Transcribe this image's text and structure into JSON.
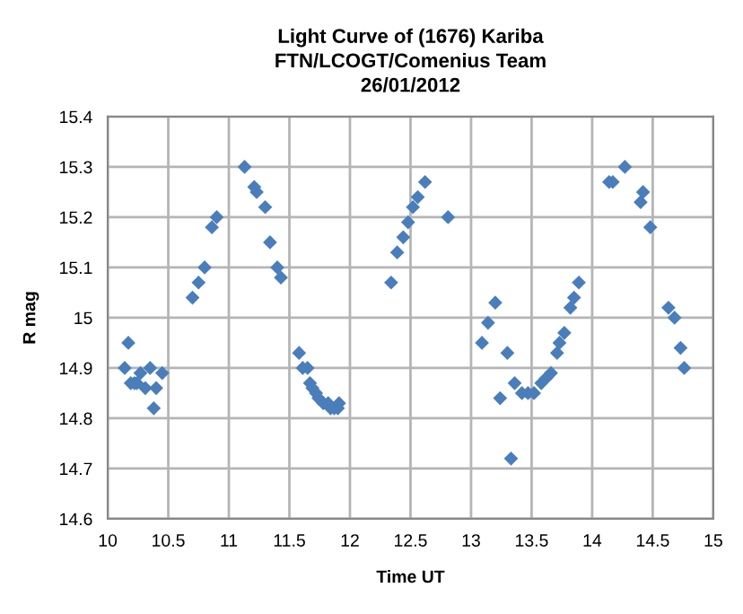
{
  "chart_data": {
    "type": "scatter",
    "title": "Light Curve of (1676) Kariba\nFTN/LCOGT/Comenius Team\n26/01/2012",
    "xlabel": "Time UT",
    "ylabel": "R mag",
    "x": [
      10.14,
      10.17,
      10.19,
      10.22,
      10.24,
      10.27,
      10.31,
      10.35,
      10.38,
      10.4,
      10.45,
      10.7,
      10.75,
      10.8,
      10.86,
      10.9,
      11.13,
      11.21,
      11.23,
      11.3,
      11.34,
      11.4,
      11.43,
      11.58,
      11.61,
      11.65,
      11.67,
      11.69,
      11.72,
      11.74,
      11.78,
      11.82,
      11.84,
      11.87,
      11.9,
      11.91,
      12.34,
      12.39,
      12.44,
      12.48,
      12.52,
      12.56,
      12.62,
      12.81,
      13.09,
      13.14,
      13.2,
      13.24,
      13.3,
      13.33,
      13.36,
      13.42,
      13.47,
      13.52,
      13.58,
      13.62,
      13.66,
      13.71,
      13.73,
      13.77,
      13.82,
      13.85,
      13.89,
      14.14,
      14.17,
      14.27,
      14.4,
      14.42,
      14.48,
      14.63,
      14.68,
      14.73,
      14.76
    ],
    "series": [
      {
        "color": "#4a7ebb",
        "values": [
          14.9,
          14.95,
          14.87,
          14.87,
          14.87,
          14.89,
          14.86,
          14.9,
          14.82,
          14.86,
          14.89,
          15.04,
          15.07,
          15.1,
          15.18,
          15.2,
          15.3,
          15.26,
          15.25,
          15.22,
          15.15,
          15.1,
          15.08,
          14.93,
          14.9,
          14.9,
          14.87,
          14.86,
          14.85,
          14.84,
          14.83,
          14.83,
          14.82,
          14.82,
          14.82,
          14.83,
          15.07,
          15.13,
          15.16,
          15.19,
          15.22,
          15.24,
          15.27,
          15.2,
          14.95,
          14.99,
          15.03,
          14.84,
          14.93,
          14.72,
          14.87,
          14.85,
          14.85,
          14.85,
          14.87,
          14.88,
          14.89,
          14.93,
          14.95,
          14.97,
          15.02,
          15.04,
          15.07,
          15.27,
          15.27,
          15.3,
          15.23,
          15.25,
          15.18,
          15.02,
          15.0,
          14.94,
          14.9
        ]
      }
    ],
    "xlim": [
      10,
      15
    ],
    "xticks": [
      10,
      10.5,
      11,
      11.5,
      12,
      12.5,
      13,
      13.5,
      14,
      14.5,
      15
    ],
    "ylim": [
      14.6,
      15.4
    ],
    "yticks": [
      14.6,
      14.7,
      14.8,
      14.9,
      15,
      15.1,
      15.2,
      15.3,
      15.4
    ],
    "grid": true,
    "marker": "diamond",
    "legend": false
  }
}
